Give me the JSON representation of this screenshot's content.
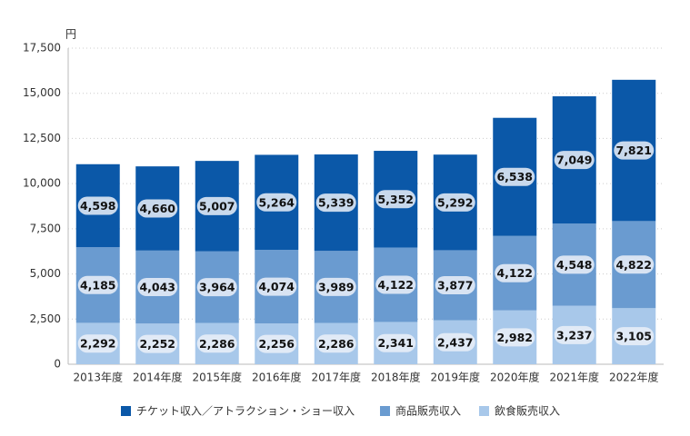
{
  "chart_data": {
    "type": "stacked-bar",
    "y_label": "円",
    "categories": [
      "2013年度",
      "2014年度",
      "2015年度",
      "2016年度",
      "2017年度",
      "2018年度",
      "2019年度",
      "2020年度",
      "2021年度",
      "2022年度"
    ],
    "series": [
      {
        "name": "チケット収入／アトラクション・ショー収入",
        "color": "#0b58a8",
        "values": [
          4598,
          4660,
          5007,
          5264,
          5339,
          5352,
          5292,
          6538,
          7049,
          7821
        ],
        "value_labels": [
          "4,598",
          "4,660",
          "5,007",
          "5,264",
          "5,339",
          "5,352",
          "5,292",
          "6,538",
          "7,049",
          "7,821"
        ]
      },
      {
        "name": "商品販売収入",
        "color": "#6a9bd0",
        "values": [
          4185,
          4043,
          3964,
          4074,
          3989,
          4122,
          3877,
          4122,
          4548,
          4822
        ],
        "value_labels": [
          "4,185",
          "4,043",
          "3,964",
          "4,074",
          "3,989",
          "4,122",
          "3,877",
          "4,122",
          "4,548",
          "4,822"
        ]
      },
      {
        "name": "飲食販売収入",
        "color": "#a8c8ea",
        "values": [
          2292,
          2252,
          2286,
          2256,
          2286,
          2341,
          2437,
          2982,
          3237,
          3105
        ],
        "value_labels": [
          "2,292",
          "2,252",
          "2,286",
          "2,256",
          "2,286",
          "2,341",
          "2,437",
          "2,982",
          "3,237",
          "3,105"
        ]
      }
    ],
    "ylim": [
      0,
      17500
    ],
    "yticks": [
      0,
      {
        "value": 2500,
        "label": "2,500"
      },
      {
        "value": 5000,
        "label": "5,000"
      },
      {
        "value": 7500,
        "label": "7,500"
      },
      {
        "value": 10000,
        "label": "10,000"
      },
      {
        "value": 12500,
        "label": "12,500"
      },
      {
        "value": 15000,
        "label": "15,000"
      },
      {
        "value": 17500,
        "label": "17,500"
      }
    ],
    "grid": true
  }
}
